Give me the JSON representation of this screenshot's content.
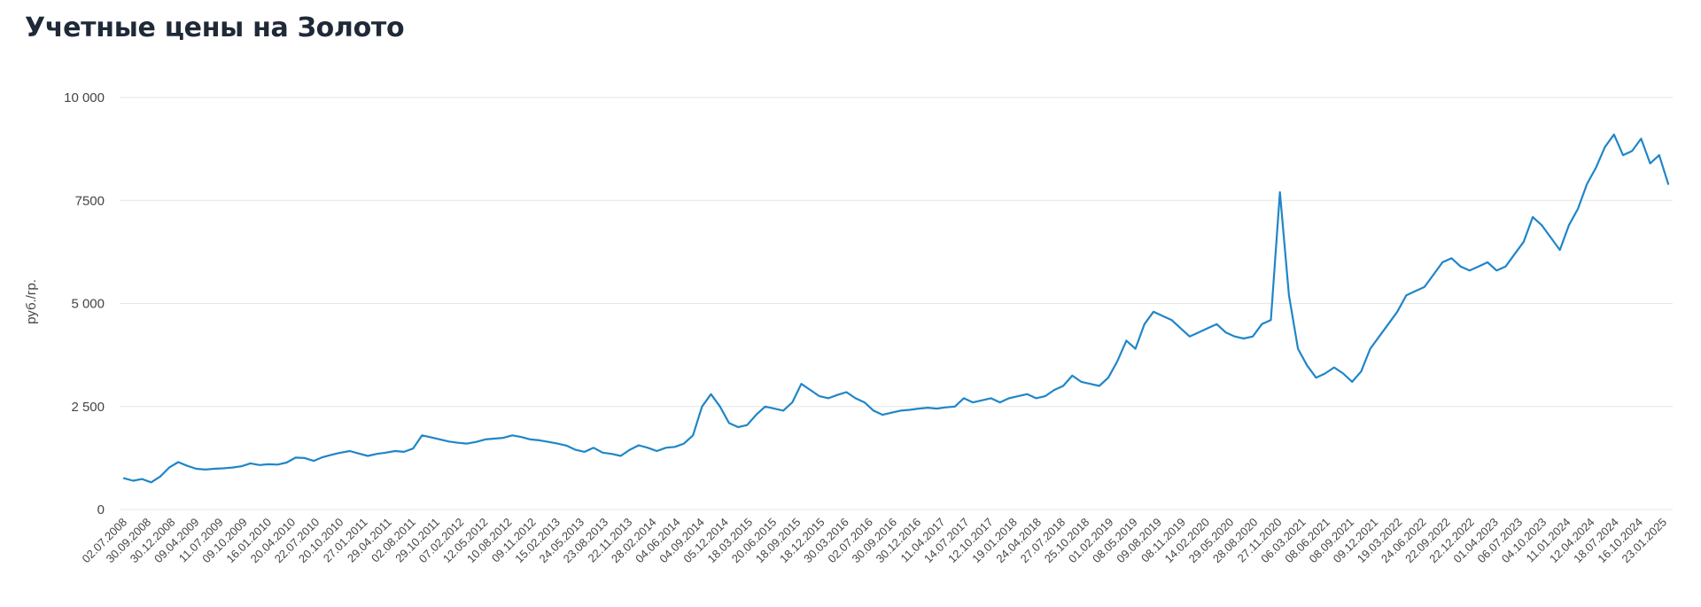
{
  "page": {
    "title": "Учетные цены на Золото"
  },
  "chart_data": {
    "type": "line",
    "title": "Учетные цены на Золото",
    "xlabel": "",
    "ylabel": "руб./гр.",
    "ylim": [
      0,
      10000
    ],
    "yticks": [
      0,
      2500,
      5000,
      7500,
      10000
    ],
    "ytick_labels": [
      "0",
      "2 500",
      "5 000",
      "7500",
      "10 000"
    ],
    "grid": true,
    "line_color": "#1f86c8",
    "x_tick_labels": [
      "02.07.2008",
      "30.09.2008",
      "30.12.2008",
      "09.04.2009",
      "11.07.2009",
      "09.10.2009",
      "16.01.2010",
      "20.04.2010",
      "22.07.2010",
      "20.10.2010",
      "27.01.2011",
      "29.04.2011",
      "02.08.2011",
      "29.10.2011",
      "07.02.2012",
      "12.05.2012",
      "10.08.2012",
      "09.11.2012",
      "15.02.2013",
      "24.05.2013",
      "23.08.2013",
      "22.11.2013",
      "28.02.2014",
      "04.06.2014",
      "04.09.2014",
      "05.12.2014",
      "18.03.2015",
      "20.06.2015",
      "18.09.2015",
      "18.12.2015",
      "30.03.2016",
      "02.07.2016",
      "30.09.2016",
      "30.12.2016",
      "11.04.2017",
      "14.07.2017",
      "12.10.2017",
      "19.01.2018",
      "24.04.2018",
      "27.07.2018",
      "25.10.2018",
      "01.02.2019",
      "08.05.2019",
      "09.08.2019",
      "08.11.2019",
      "14.02.2020",
      "29.05.2020",
      "28.08.2020",
      "27.11.2020",
      "06.03.2021",
      "08.06.2021",
      "08.09.2021",
      "09.12.2021",
      "19.03.2022",
      "24.06.2022",
      "22.09.2022",
      "22.12.2022",
      "01.04.2023",
      "06.07.2023",
      "04.10.2023",
      "11.01.2024",
      "12.04.2024",
      "18.07.2024",
      "16.10.2024",
      "23.01.2025"
    ],
    "series": [
      {
        "values": [
          760,
          700,
          740,
          660,
          800,
          1020,
          1150,
          1060,
          990,
          970,
          990,
          1000,
          1020,
          1050,
          1120,
          1080,
          1100,
          1090,
          1140,
          1260,
          1250,
          1180,
          1270,
          1330,
          1380,
          1420,
          1360,
          1300,
          1350,
          1380,
          1420,
          1400,
          1480,
          1800,
          1750,
          1700,
          1650,
          1620,
          1600,
          1640,
          1700,
          1720,
          1740,
          1800,
          1760,
          1700,
          1680,
          1640,
          1600,
          1550,
          1450,
          1400,
          1500,
          1380,
          1350,
          1300,
          1450,
          1560,
          1500,
          1420,
          1500,
          1520,
          1600,
          1800,
          2500,
          2800,
          2500,
          2100,
          2000,
          2050,
          2300,
          2500,
          2450,
          2400,
          2600,
          3050,
          2900,
          2750,
          2700,
          2780,
          2850,
          2700,
          2600,
          2400,
          2300,
          2350,
          2400,
          2420,
          2450,
          2470,
          2450,
          2480,
          2500,
          2700,
          2600,
          2650,
          2700,
          2600,
          2700,
          2750,
          2800,
          2700,
          2750,
          2900,
          3000,
          3250,
          3100,
          3050,
          3000,
          3200,
          3600,
          4100,
          3900,
          4500,
          4800,
          4700,
          4600,
          4400,
          4200,
          4300,
          4400,
          4500,
          4300,
          4200,
          4150,
          4200,
          4500,
          4600,
          7700,
          5200,
          3900,
          3500,
          3200,
          3300,
          3450,
          3300,
          3100,
          3350,
          3900,
          4200,
          4500,
          4800,
          5200,
          5300,
          5400,
          5700,
          6000,
          6100,
          5900,
          5800,
          5900,
          6000,
          5800,
          5900,
          6200,
          6500,
          7100,
          6900,
          6600,
          6300,
          6900,
          7300,
          7900,
          8300,
          8800,
          9100,
          8600,
          8700,
          9000,
          8400,
          8600,
          7900
        ]
      }
    ]
  }
}
